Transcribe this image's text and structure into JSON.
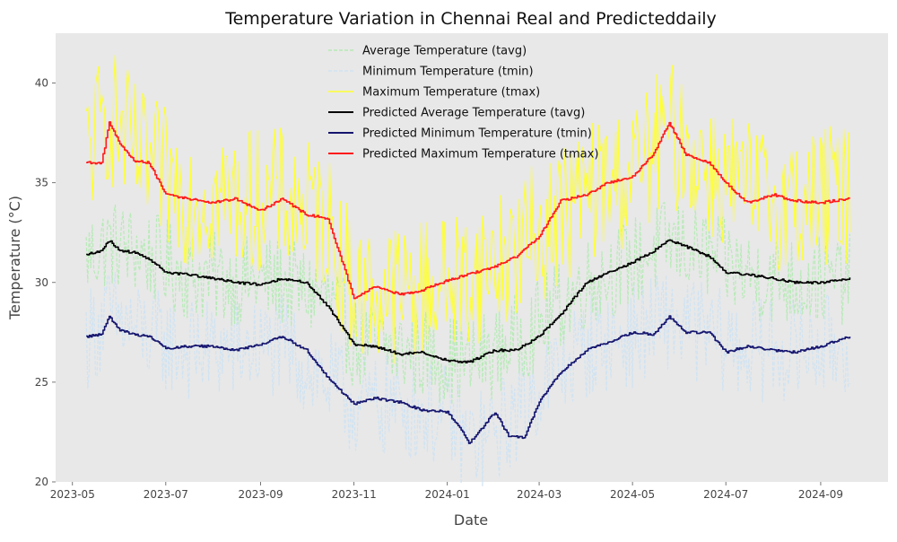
{
  "chart_data": {
    "type": "line",
    "title": "Temperature Variation in Chennai Real and Predicteddaily",
    "xlabel": "Date",
    "ylabel": "Temperature (°C)",
    "xlim": [
      "2023-04-20",
      "2024-10-15"
    ],
    "ylim": [
      20,
      42.5
    ],
    "grid": false,
    "legend_position": "upper-center",
    "background": "#e8e8e8",
    "x_ticks": [
      "2023-05",
      "2023-07",
      "2023-09",
      "2023-11",
      "2024-01",
      "2024-03",
      "2024-05",
      "2024-07",
      "2024-09"
    ],
    "y_ticks": [
      20,
      25,
      30,
      35,
      40
    ],
    "x_start": "2023-05-10",
    "x_end": "2024-09-20",
    "series": [
      {
        "name": "Average Temperature (tavg)",
        "color": "#b5eab5",
        "kind": "noisy",
        "x": [
          "2023-05-10",
          "2023-05-25",
          "2023-06-15",
          "2023-07-15",
          "2023-08-15",
          "2023-09-15",
          "2023-10-15",
          "2023-11-01",
          "2023-12-01",
          "2024-01-01",
          "2024-01-15",
          "2024-02-01",
          "2024-03-01",
          "2024-04-01",
          "2024-05-01",
          "2024-05-25",
          "2024-06-15",
          "2024-07-15",
          "2024-08-15",
          "2024-09-20"
        ],
        "values": [
          31.3,
          32.0,
          31.5,
          30.4,
          30.1,
          30.0,
          29.2,
          27.0,
          26.6,
          26.2,
          26.0,
          26.5,
          27.9,
          30.0,
          31.0,
          32.0,
          31.5,
          30.4,
          30.0,
          30.2
        ],
        "spread": 2.3
      },
      {
        "name": "Minimum Temperature (tmin)",
        "color": "#cfe3f2",
        "kind": "noisy",
        "x": [
          "2023-05-10",
          "2023-05-25",
          "2023-06-15",
          "2023-07-15",
          "2023-08-15",
          "2023-09-15",
          "2023-10-15",
          "2023-11-01",
          "2023-12-01",
          "2024-01-01",
          "2024-01-15",
          "2024-02-01",
          "2024-03-01",
          "2024-04-01",
          "2024-05-01",
          "2024-05-25",
          "2024-06-15",
          "2024-07-15",
          "2024-08-15",
          "2024-09-20"
        ],
        "values": [
          27.2,
          28.3,
          27.5,
          26.6,
          26.6,
          26.8,
          25.0,
          23.8,
          23.8,
          23.2,
          22.0,
          22.3,
          24.8,
          26.8,
          27.3,
          28.2,
          27.5,
          26.6,
          26.6,
          27.0
        ],
        "spread": 2.6
      },
      {
        "name": "Maximum Temperature (tmax)",
        "color": "#ffff33",
        "kind": "noisy",
        "x": [
          "2023-05-10",
          "2023-05-25",
          "2023-06-15",
          "2023-07-15",
          "2023-08-15",
          "2023-09-15",
          "2023-10-15",
          "2023-11-01",
          "2023-12-01",
          "2024-01-01",
          "2024-01-15",
          "2024-02-01",
          "2024-03-01",
          "2024-04-01",
          "2024-05-01",
          "2024-05-25",
          "2024-06-15",
          "2024-07-15",
          "2024-08-15",
          "2024-09-20"
        ],
        "values": [
          36.5,
          38.5,
          36.0,
          34.5,
          34.2,
          34.2,
          33.0,
          29.5,
          29.5,
          30.0,
          30.3,
          31.0,
          32.5,
          34.5,
          35.5,
          37.5,
          36.0,
          34.5,
          34.0,
          34.5
        ],
        "spread": 3.6
      },
      {
        "name": "Predicted Average Temperature (tavg)",
        "color": "#000000",
        "kind": "step",
        "x": [
          "2023-05-10",
          "2023-05-20",
          "2023-05-25",
          "2023-06-01",
          "2023-06-10",
          "2023-06-20",
          "2023-07-01",
          "2023-07-15",
          "2023-08-01",
          "2023-08-15",
          "2023-09-01",
          "2023-09-15",
          "2023-10-01",
          "2023-10-15",
          "2023-11-01",
          "2023-11-15",
          "2023-12-01",
          "2023-12-15",
          "2024-01-01",
          "2024-01-15",
          "2024-02-01",
          "2024-02-15",
          "2024-03-01",
          "2024-03-15",
          "2024-04-01",
          "2024-04-15",
          "2024-05-01",
          "2024-05-15",
          "2024-05-25",
          "2024-06-05",
          "2024-06-20",
          "2024-07-01",
          "2024-07-15",
          "2024-08-01",
          "2024-08-15",
          "2024-09-01",
          "2024-09-20"
        ],
        "values": [
          31.4,
          31.6,
          32.1,
          31.6,
          31.5,
          31.2,
          30.5,
          30.4,
          30.2,
          30.0,
          29.9,
          30.2,
          30.0,
          28.8,
          26.9,
          26.8,
          26.4,
          26.5,
          26.1,
          26.0,
          26.6,
          26.6,
          27.3,
          28.4,
          30.0,
          30.5,
          31.0,
          31.6,
          32.1,
          31.8,
          31.3,
          30.5,
          30.4,
          30.2,
          30.0,
          30.0,
          30.2
        ]
      },
      {
        "name": "Predicted Minimum Temperature (tmin)",
        "color": "#14146e",
        "kind": "step",
        "x": [
          "2023-05-10",
          "2023-05-20",
          "2023-05-25",
          "2023-06-01",
          "2023-06-10",
          "2023-06-20",
          "2023-07-01",
          "2023-07-15",
          "2023-08-01",
          "2023-08-15",
          "2023-09-01",
          "2023-09-15",
          "2023-10-01",
          "2023-10-15",
          "2023-11-01",
          "2023-11-15",
          "2023-12-01",
          "2023-12-15",
          "2024-01-01",
          "2024-01-10",
          "2024-01-15",
          "2024-02-01",
          "2024-02-10",
          "2024-02-20",
          "2024-03-01",
          "2024-03-15",
          "2024-04-01",
          "2024-04-15",
          "2024-05-01",
          "2024-05-15",
          "2024-05-25",
          "2024-06-05",
          "2024-06-20",
          "2024-07-01",
          "2024-07-15",
          "2024-08-01",
          "2024-08-15",
          "2024-09-01",
          "2024-09-20"
        ],
        "values": [
          27.3,
          27.4,
          28.3,
          27.6,
          27.4,
          27.3,
          26.7,
          26.8,
          26.8,
          26.6,
          26.9,
          27.3,
          26.6,
          25.2,
          23.9,
          24.2,
          24.0,
          23.6,
          23.5,
          22.6,
          21.9,
          23.5,
          22.3,
          22.2,
          24.0,
          25.5,
          26.6,
          27.0,
          27.5,
          27.4,
          28.3,
          27.5,
          27.5,
          26.5,
          26.8,
          26.6,
          26.5,
          26.8,
          27.3
        ]
      },
      {
        "name": "Predicted Maximum Temperature (tmax)",
        "color": "#ff1a1a",
        "kind": "step",
        "x": [
          "2023-05-10",
          "2023-05-20",
          "2023-05-25",
          "2023-06-01",
          "2023-06-10",
          "2023-06-20",
          "2023-07-01",
          "2023-07-15",
          "2023-08-01",
          "2023-08-15",
          "2023-09-01",
          "2023-09-15",
          "2023-10-01",
          "2023-10-15",
          "2023-11-01",
          "2023-11-15",
          "2023-12-01",
          "2023-12-15",
          "2024-01-01",
          "2024-01-15",
          "2024-02-01",
          "2024-02-15",
          "2024-03-01",
          "2024-03-15",
          "2024-04-01",
          "2024-04-15",
          "2024-05-01",
          "2024-05-15",
          "2024-05-25",
          "2024-06-05",
          "2024-06-20",
          "2024-07-01",
          "2024-07-15",
          "2024-08-01",
          "2024-08-15",
          "2024-09-01",
          "2024-09-20"
        ],
        "values": [
          36.0,
          36.0,
          38.0,
          37.0,
          36.1,
          36.0,
          34.4,
          34.2,
          34.0,
          34.2,
          33.6,
          34.2,
          33.4,
          33.2,
          29.2,
          29.8,
          29.4,
          29.6,
          30.1,
          30.4,
          30.8,
          31.3,
          32.3,
          34.1,
          34.4,
          35.0,
          35.3,
          36.5,
          38.0,
          36.4,
          36.0,
          35.0,
          34.0,
          34.4,
          34.1,
          34.0,
          34.2
        ]
      }
    ]
  }
}
